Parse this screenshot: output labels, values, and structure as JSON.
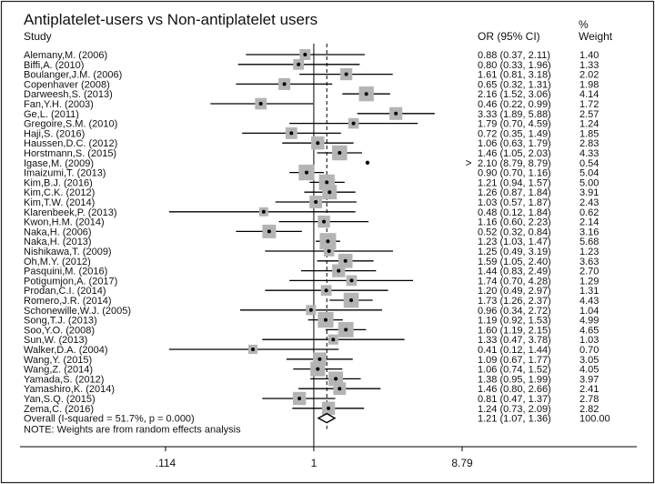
{
  "chart_data": {
    "type": "forest",
    "title": "Antiplatelet-users vs Non-antiplatelet users",
    "headers": {
      "study": "Study",
      "or": "OR (95% CI)",
      "weight_pct": "%",
      "weight": "Weight"
    },
    "x_scale": "log",
    "x_ticks": [
      ".114",
      "1",
      "8.79"
    ],
    "xlim": [
      0.114,
      8.79
    ],
    "reference_line": 1,
    "overall_line": 1.21,
    "studies": [
      {
        "name": "Alemany,M. (2006)",
        "or": 0.88,
        "lo": 0.37,
        "hi": 2.11,
        "ci": "0.88 (0.37, 2.11)",
        "weight": "1.40"
      },
      {
        "name": "Biffi,A. (2010)",
        "or": 0.8,
        "lo": 0.33,
        "hi": 1.96,
        "ci": "0.80 (0.33, 1.96)",
        "weight": "1.33"
      },
      {
        "name": "Boulanger,J.M. (2006)",
        "or": 1.61,
        "lo": 0.81,
        "hi": 3.18,
        "ci": "1.61 (0.81, 3.18)",
        "weight": "2.02"
      },
      {
        "name": "Copenhaver (2008)",
        "or": 0.65,
        "lo": 0.32,
        "hi": 1.31,
        "ci": "0.65 (0.32, 1.31)",
        "weight": "1.98"
      },
      {
        "name": "Darweesh,S. (2013)",
        "or": 2.16,
        "lo": 1.52,
        "hi": 3.06,
        "ci": "2.16 (1.52, 3.06)",
        "weight": "4.14"
      },
      {
        "name": "Fan,Y.H. (2003)",
        "or": 0.46,
        "lo": 0.22,
        "hi": 0.99,
        "ci": "0.46 (0.22, 0.99)",
        "weight": "1.72"
      },
      {
        "name": "Ge,L. (2011)",
        "or": 3.33,
        "lo": 1.89,
        "hi": 5.88,
        "ci": "3.33 (1.89, 5.88)",
        "weight": "2.57"
      },
      {
        "name": "Gregoire,S.M. (2010)",
        "or": 1.79,
        "lo": 0.7,
        "hi": 4.59,
        "ci": "1.79 (0.70, 4.59)",
        "weight": "1.24"
      },
      {
        "name": "Haji,S. (2016)",
        "or": 0.72,
        "lo": 0.35,
        "hi": 1.49,
        "ci": "0.72 (0.35, 1.49)",
        "weight": "1.85"
      },
      {
        "name": "Haussen,D.C. (2012)",
        "or": 1.06,
        "lo": 0.63,
        "hi": 1.79,
        "ci": "1.06 (0.63, 1.79)",
        "weight": "2.83"
      },
      {
        "name": "Horstmann,S. (2015)",
        "or": 1.46,
        "lo": 1.05,
        "hi": 2.03,
        "ci": "1.46 (1.05, 2.03)",
        "weight": "4.33"
      },
      {
        "name": "Igase,M. (2009)",
        "or": 2.1,
        "lo": 8.79,
        "hi": 8.79,
        "ci": "2.10 (8.79, 8.79)",
        "weight": "0.54",
        "arrow": true
      },
      {
        "name": "Imaizumi,T. (2013)",
        "or": 0.9,
        "lo": 0.7,
        "hi": 1.16,
        "ci": "0.90 (0.70, 1.16)",
        "weight": "5.04"
      },
      {
        "name": "Kim,B.J. (2016)",
        "or": 1.21,
        "lo": 0.94,
        "hi": 1.57,
        "ci": "1.21 (0.94, 1.57)",
        "weight": "5.00"
      },
      {
        "name": "Kim,C.K. (2012)",
        "or": 1.26,
        "lo": 0.87,
        "hi": 1.84,
        "ci": "1.26 (0.87, 1.84)",
        "weight": "3.91"
      },
      {
        "name": "Kim,T.W. (2014)",
        "or": 1.03,
        "lo": 0.57,
        "hi": 1.87,
        "ci": "1.03 (0.57, 1.87)",
        "weight": "2.43"
      },
      {
        "name": "Klarenbeek,P. (2013)",
        "or": 0.48,
        "lo": 0.12,
        "hi": 1.84,
        "ci": "0.48 (0.12, 1.84)",
        "weight": "0.62"
      },
      {
        "name": "Kwon,H.M. (2014)",
        "or": 1.16,
        "lo": 0.6,
        "hi": 2.23,
        "ci": "1.16 (0.60, 2.23)",
        "weight": "2.14"
      },
      {
        "name": "Naka,H. (2006)",
        "or": 0.52,
        "lo": 0.32,
        "hi": 0.84,
        "ci": "0.52 (0.32, 0.84)",
        "weight": "3.16"
      },
      {
        "name": "Naka,H. (2013)",
        "or": 1.23,
        "lo": 1.03,
        "hi": 1.47,
        "ci": "1.23 (1.03, 1.47)",
        "weight": "5.68"
      },
      {
        "name": "Nishikawa,T. (2009)",
        "or": 1.25,
        "lo": 0.49,
        "hi": 3.19,
        "ci": "1.25 (0.49, 3.19)",
        "weight": "1.23"
      },
      {
        "name": "Oh,M.Y. (2012)",
        "or": 1.59,
        "lo": 1.05,
        "hi": 2.4,
        "ci": "1.59 (1.05, 2.40)",
        "weight": "3.63"
      },
      {
        "name": "Pasquini,M. (2016)",
        "or": 1.44,
        "lo": 0.83,
        "hi": 2.49,
        "ci": "1.44 (0.83, 2.49)",
        "weight": "2.70"
      },
      {
        "name": "Potigumjon,A. (2017)",
        "or": 1.74,
        "lo": 0.7,
        "hi": 4.28,
        "ci": "1.74 (0.70, 4.28)",
        "weight": "1.29"
      },
      {
        "name": "Prodan,C.I. (2014)",
        "or": 1.2,
        "lo": 0.49,
        "hi": 2.97,
        "ci": "1.20 (0.49, 2.97)",
        "weight": "1.31"
      },
      {
        "name": "Romero,J.R. (2014)",
        "or": 1.73,
        "lo": 1.26,
        "hi": 2.37,
        "ci": "1.73 (1.26, 2.37)",
        "weight": "4.43"
      },
      {
        "name": "Schonewille,W.J. (2005)",
        "or": 0.96,
        "lo": 0.34,
        "hi": 2.72,
        "ci": "0.96 (0.34, 2.72)",
        "weight": "1.04"
      },
      {
        "name": "Song,T.J. (2013)",
        "or": 1.19,
        "lo": 0.92,
        "hi": 1.53,
        "ci": "1.19 (0.92, 1.53)",
        "weight": "4.99"
      },
      {
        "name": "Soo,Y.O. (2008)",
        "or": 1.6,
        "lo": 1.19,
        "hi": 2.15,
        "ci": "1.60 (1.19, 2.15)",
        "weight": "4.65"
      },
      {
        "name": "Sun,W. (2013)",
        "or": 1.33,
        "lo": 0.47,
        "hi": 3.78,
        "ci": "1.33 (0.47, 3.78)",
        "weight": "1.03"
      },
      {
        "name": "Walker,D.A. (2004)",
        "or": 0.41,
        "lo": 0.12,
        "hi": 1.44,
        "ci": "0.41 (0.12, 1.44)",
        "weight": "0.70"
      },
      {
        "name": "Wang,Y. (2015)",
        "or": 1.09,
        "lo": 0.67,
        "hi": 1.77,
        "ci": "1.09 (0.67, 1.77)",
        "weight": "3.05"
      },
      {
        "name": "Wang,Z. (2014)",
        "or": 1.06,
        "lo": 0.74,
        "hi": 1.52,
        "ci": "1.06 (0.74, 1.52)",
        "weight": "4.05"
      },
      {
        "name": "Yamada,S. (2012)",
        "or": 1.38,
        "lo": 0.95,
        "hi": 1.99,
        "ci": "1.38 (0.95, 1.99)",
        "weight": "3.97"
      },
      {
        "name": "Yamashiro,K. (2014)",
        "or": 1.46,
        "lo": 0.8,
        "hi": 2.66,
        "ci": "1.46 (0.80, 2.66)",
        "weight": "2.41"
      },
      {
        "name": "Yan,S.Q. (2015)",
        "or": 0.81,
        "lo": 0.47,
        "hi": 1.37,
        "ci": "0.81 (0.47, 1.37)",
        "weight": "2.78"
      },
      {
        "name": "Zema,C. (2016)",
        "or": 1.24,
        "lo": 0.73,
        "hi": 2.09,
        "ci": "1.24 (0.73, 2.09)",
        "weight": "2.82"
      }
    ],
    "overall": {
      "label": "Overall  (I-squared = 51.7%, p = 0.000)",
      "or": 1.21,
      "lo": 1.07,
      "hi": 1.36,
      "ci": "1.21 (1.07, 1.36)",
      "weight": "100.00"
    },
    "note": "NOTE: Weights are from random effects analysis",
    "colors": {
      "box": "#b4b4b4",
      "line": "#000000",
      "text": "#111111",
      "border": "#222222"
    }
  }
}
